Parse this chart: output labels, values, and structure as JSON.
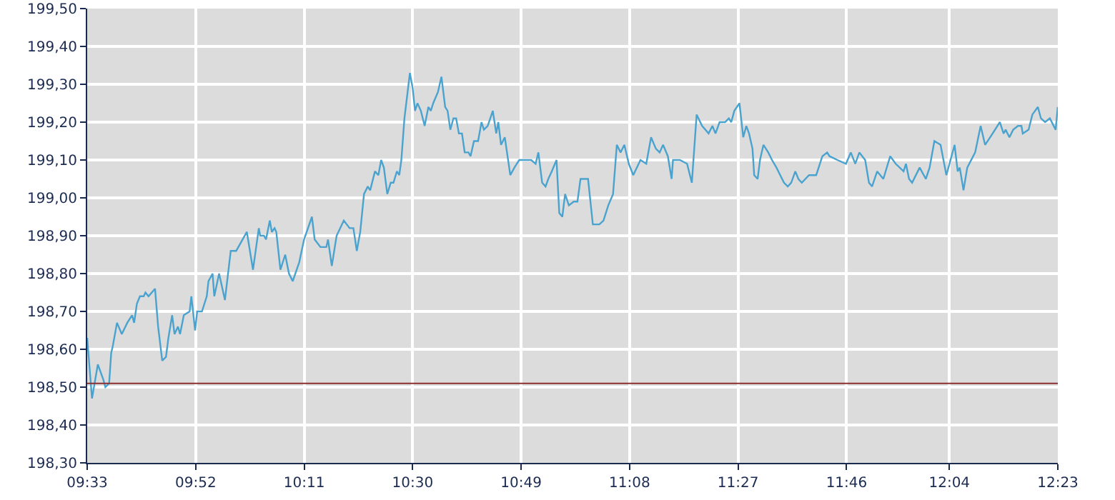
{
  "chart_data": {
    "type": "line",
    "x": [
      9.55,
      9.564,
      9.581,
      9.597,
      9.603,
      9.614,
      9.62,
      9.625,
      9.637,
      9.651,
      9.667,
      9.681,
      9.687,
      9.695,
      9.704,
      9.715,
      9.72,
      9.729,
      9.748,
      9.757,
      9.769,
      9.78,
      9.787,
      9.798,
      9.805,
      9.815,
      9.821,
      9.832,
      9.849,
      9.854,
      9.865,
      9.871,
      9.885,
      9.899,
      9.904,
      9.916,
      9.921,
      9.935,
      9.952,
      9.969,
      9.985,
      10.016,
      10.034,
      10.051,
      10.055,
      10.066,
      10.072,
      10.083,
      10.089,
      10.097,
      10.102,
      10.114,
      10.128,
      10.139,
      10.15,
      10.169,
      10.183,
      10.206,
      10.214,
      10.231,
      10.248,
      10.253,
      10.264,
      10.278,
      10.299,
      10.316,
      10.327,
      10.337,
      10.347,
      10.358,
      10.369,
      10.376,
      10.39,
      10.4,
      10.408,
      10.416,
      10.426,
      10.436,
      10.444,
      10.454,
      10.461,
      10.467,
      10.476,
      10.492,
      10.5,
      10.507,
      10.514,
      10.524,
      10.535,
      10.546,
      10.553,
      10.56,
      10.574,
      10.584,
      10.595,
      10.602,
      10.61,
      10.619,
      10.627,
      10.635,
      10.644,
      10.652,
      10.663,
      10.669,
      10.679,
      10.691,
      10.701,
      10.708,
      10.719,
      10.734,
      10.744,
      10.75,
      10.758,
      10.769,
      10.785,
      10.797,
      10.811,
      10.846,
      10.859,
      10.867,
      10.878,
      10.888,
      10.896,
      10.906,
      10.92,
      10.928,
      10.937,
      10.945,
      10.956,
      10.97,
      10.981,
      10.99,
      11.012,
      11.026,
      11.045,
      11.057,
      11.071,
      11.085,
      11.096,
      11.107,
      11.118,
      11.131,
      11.144,
      11.165,
      11.182,
      11.196,
      11.21,
      11.221,
      11.231,
      11.245,
      11.256,
      11.26,
      11.28,
      11.301,
      11.315,
      11.329,
      11.345,
      11.364,
      11.375,
      11.384,
      11.396,
      11.412,
      11.423,
      11.43,
      11.439,
      11.454,
      11.465,
      11.474,
      11.482,
      11.492,
      11.497,
      11.507,
      11.514,
      11.524,
      11.538,
      11.549,
      11.562,
      11.573,
      11.584,
      11.595,
      11.605,
      11.617,
      11.626,
      11.636,
      11.657,
      11.668,
      11.678,
      11.696,
      11.71,
      11.717,
      11.74,
      11.765,
      11.779,
      11.792,
      11.804,
      11.821,
      11.832,
      11.841,
      11.856,
      11.874,
      11.894,
      11.91,
      11.933,
      11.94,
      11.949,
      11.958,
      11.98,
      11.998,
      12.009,
      12.023,
      12.041,
      12.058,
      12.082,
      12.091,
      12.097,
      12.108,
      12.119,
      12.142,
      12.158,
      12.171,
      12.193,
      12.214,
      12.225,
      12.231,
      12.242,
      12.253,
      12.267,
      12.277,
      12.281,
      12.298,
      12.309,
      12.325,
      12.334,
      12.346,
      12.36,
      12.377,
      12.383
    ],
    "series": [
      {
        "color": "#4aa3cf",
        "values": [
          198.63,
          198.47,
          198.56,
          198.52,
          198.5,
          198.51,
          198.59,
          198.61,
          198.67,
          198.64,
          198.67,
          198.69,
          198.67,
          198.72,
          198.74,
          198.74,
          198.75,
          198.74,
          198.76,
          198.66,
          198.57,
          198.58,
          198.63,
          198.69,
          198.64,
          198.66,
          198.64,
          198.69,
          198.7,
          198.74,
          198.65,
          198.7,
          198.7,
          198.74,
          198.78,
          198.8,
          198.74,
          198.8,
          198.73,
          198.86,
          198.86,
          198.91,
          198.81,
          198.92,
          198.9,
          198.9,
          198.89,
          198.94,
          198.91,
          198.92,
          198.91,
          198.81,
          198.85,
          198.8,
          198.78,
          198.83,
          198.89,
          198.95,
          198.89,
          198.87,
          198.87,
          198.89,
          198.82,
          198.9,
          198.94,
          198.92,
          198.92,
          198.86,
          198.91,
          199.01,
          199.03,
          199.02,
          199.07,
          199.06,
          199.1,
          199.08,
          199.01,
          199.04,
          199.04,
          199.07,
          199.06,
          199.1,
          199.21,
          199.33,
          199.29,
          199.23,
          199.25,
          199.23,
          199.19,
          199.24,
          199.23,
          199.25,
          199.28,
          199.32,
          199.24,
          199.23,
          199.18,
          199.21,
          199.21,
          199.17,
          199.17,
          199.12,
          199.12,
          199.11,
          199.15,
          199.15,
          199.2,
          199.18,
          199.19,
          199.23,
          199.17,
          199.2,
          199.14,
          199.16,
          199.06,
          199.08,
          199.1,
          199.1,
          199.09,
          199.12,
          199.04,
          199.03,
          199.05,
          199.07,
          199.1,
          198.96,
          198.95,
          199.01,
          198.98,
          198.99,
          198.99,
          199.05,
          199.05,
          198.93,
          198.93,
          198.94,
          198.98,
          199.01,
          199.14,
          199.12,
          199.14,
          199.09,
          199.06,
          199.1,
          199.09,
          199.16,
          199.13,
          199.12,
          199.14,
          199.11,
          199.05,
          199.1,
          199.1,
          199.09,
          199.04,
          199.22,
          199.19,
          199.17,
          199.19,
          199.17,
          199.2,
          199.2,
          199.21,
          199.2,
          199.23,
          199.25,
          199.16,
          199.19,
          199.17,
          199.13,
          199.06,
          199.05,
          199.1,
          199.14,
          199.12,
          199.1,
          199.08,
          199.06,
          199.04,
          199.03,
          199.04,
          199.07,
          199.05,
          199.04,
          199.06,
          199.06,
          199.06,
          199.11,
          199.12,
          199.11,
          199.1,
          199.09,
          199.12,
          199.09,
          199.12,
          199.1,
          199.04,
          199.03,
          199.07,
          199.05,
          199.11,
          199.09,
          199.07,
          199.09,
          199.05,
          199.04,
          199.08,
          199.05,
          199.08,
          199.15,
          199.14,
          199.06,
          199.14,
          199.07,
          199.08,
          199.02,
          199.08,
          199.12,
          199.19,
          199.14,
          199.17,
          199.2,
          199.17,
          199.18,
          199.16,
          199.18,
          199.19,
          199.19,
          199.17,
          199.18,
          199.22,
          199.24,
          199.21,
          199.2,
          199.21,
          199.18,
          199.24
        ]
      }
    ],
    "xlim": [
      9.55,
      12.3833
    ],
    "xticks": [
      {
        "value": 9.55,
        "label": "09:33"
      },
      {
        "value": 9.8667,
        "label": "09:52"
      },
      {
        "value": 10.1833,
        "label": "10:11"
      },
      {
        "value": 10.5,
        "label": "10:30"
      },
      {
        "value": 10.8167,
        "label": "10:49"
      },
      {
        "value": 11.1333,
        "label": "11:08"
      },
      {
        "value": 11.45,
        "label": "11:27"
      },
      {
        "value": 11.7667,
        "label": "11:46"
      },
      {
        "value": 12.0667,
        "label": "12:04"
      },
      {
        "value": 12.3833,
        "label": "12:23"
      }
    ],
    "ylim": [
      198.3,
      199.5
    ],
    "yticks": [
      {
        "value": 198.3,
        "label": "198,30"
      },
      {
        "value": 198.4,
        "label": "198,40"
      },
      {
        "value": 198.5,
        "label": "198,50"
      },
      {
        "value": 198.6,
        "label": "198,60"
      },
      {
        "value": 198.7,
        "label": "198,70"
      },
      {
        "value": 198.8,
        "label": "198,80"
      },
      {
        "value": 198.9,
        "label": "198,90"
      },
      {
        "value": 199.0,
        "label": "199,00"
      },
      {
        "value": 199.1,
        "label": "199,10"
      },
      {
        "value": 199.2,
        "label": "199,20"
      },
      {
        "value": 199.3,
        "label": "199,30"
      },
      {
        "value": 199.4,
        "label": "199,40"
      },
      {
        "value": 199.5,
        "label": "199,50"
      }
    ],
    "ref_lines": [
      {
        "axis": "y",
        "value": 198.51,
        "color": "#8b3030"
      }
    ],
    "grid": true,
    "legend": false,
    "marker": "none",
    "line_style": "solid"
  }
}
